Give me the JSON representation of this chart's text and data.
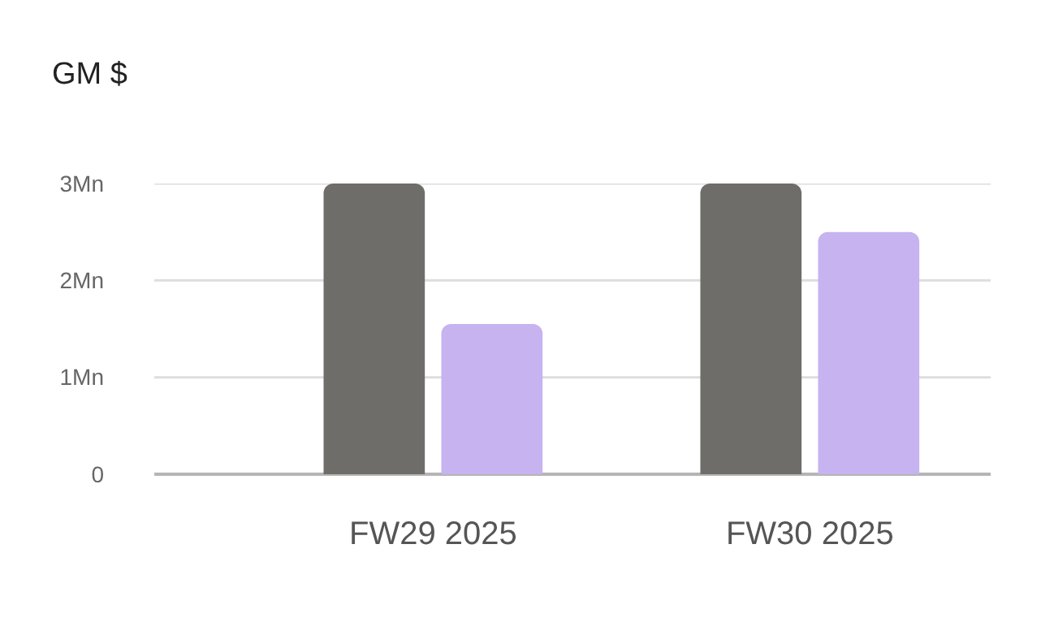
{
  "chart_data": {
    "type": "bar",
    "title": "GM $",
    "categories": [
      "FW29 2025",
      "FW30 2025"
    ],
    "series": [
      {
        "color": "#6e6d6a",
        "values": [
          3.0,
          3.0
        ]
      },
      {
        "color": "#c6b3f0",
        "values": [
          1.55,
          2.5
        ]
      }
    ],
    "ylim": [
      0,
      3
    ],
    "yticks": [
      {
        "value": 0,
        "label": "0"
      },
      {
        "value": 1,
        "label": "1Mn"
      },
      {
        "value": 2,
        "label": "2Mn"
      },
      {
        "value": 3,
        "label": "3Mn"
      }
    ],
    "grid": "y"
  }
}
